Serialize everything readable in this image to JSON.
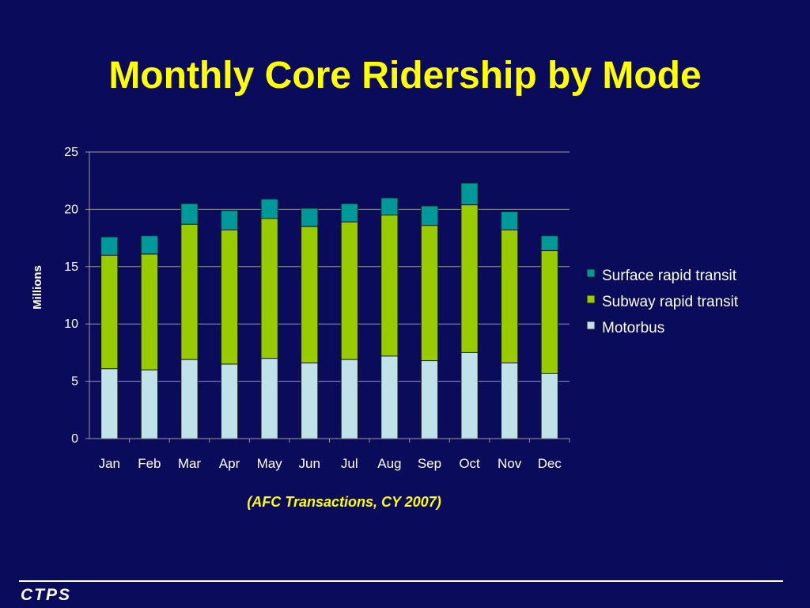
{
  "slide": {
    "title": "Monthly Core Ridership by Mode",
    "subtitle": "(AFC Transactions, CY 2007)",
    "logo_text": "CTPS"
  },
  "colors": {
    "background": "#0b0b5c",
    "title": "#ffff00",
    "axis_text": "#ffffff",
    "gridline": "#9a9a9a"
  },
  "chart_data": {
    "type": "bar",
    "stacked": true,
    "ylabel": "Millions",
    "ylim": [
      0,
      25
    ],
    "yticks": [
      0,
      5,
      10,
      15,
      20,
      25
    ],
    "grid": true,
    "legend_position": "right",
    "categories": [
      "Jan",
      "Feb",
      "Mar",
      "Apr",
      "May",
      "Jun",
      "Jul",
      "Aug",
      "Sep",
      "Oct",
      "Nov",
      "Dec"
    ],
    "series": [
      {
        "name": "Motorbus",
        "color": "#bfe3e8",
        "values": [
          6.1,
          6.0,
          6.9,
          6.5,
          7.0,
          6.6,
          6.9,
          7.2,
          6.8,
          7.5,
          6.6,
          5.7
        ]
      },
      {
        "name": "Subway rapid transit",
        "color": "#99cc00",
        "values": [
          9.9,
          10.1,
          11.8,
          11.7,
          12.2,
          11.9,
          12.0,
          12.3,
          11.8,
          12.9,
          11.6,
          10.7
        ]
      },
      {
        "name": "Surface rapid transit",
        "color": "#009999",
        "values": [
          1.6,
          1.6,
          1.8,
          1.7,
          1.7,
          1.6,
          1.6,
          1.5,
          1.7,
          1.9,
          1.6,
          1.3
        ]
      }
    ]
  }
}
